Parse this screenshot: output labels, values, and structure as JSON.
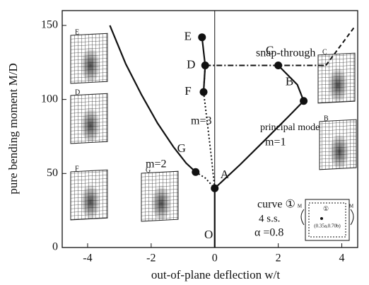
{
  "chart_data": {
    "type": "line",
    "xlabel": "out-of-plane deflection  w/t",
    "ylabel": "pure bending moment M/D",
    "xlim": [
      -4.8,
      4.5
    ],
    "ylim": [
      0,
      160
    ],
    "xticks": [
      -4,
      -2,
      0,
      2,
      4
    ],
    "yticks": [
      0,
      50,
      100,
      150
    ],
    "series": [
      {
        "style": "solid",
        "x": [
          -3.3,
          -2.8,
          -2.3,
          -1.8,
          -1.3,
          -0.9,
          -0.6
        ],
        "values": [
          150,
          124,
          103,
          84,
          68,
          57,
          51
        ]
      },
      {
        "style": "dotted",
        "x": [
          -0.6,
          -0.3,
          0
        ],
        "values": [
          51,
          47,
          40
        ]
      },
      {
        "style": "solid",
        "x": [
          0,
          0.8,
          1.6,
          2.3,
          2.8,
          2.6,
          2.0
        ],
        "values": [
          40,
          56,
          73,
          88,
          99,
          110,
          123
        ]
      },
      {
        "style": "dotted",
        "x": [
          0,
          -0.1,
          -0.22,
          -0.35,
          -0.3
        ],
        "values": [
          40,
          60,
          82,
          105,
          123
        ]
      },
      {
        "style": "solid",
        "x": [
          -0.4,
          -0.3,
          -0.35
        ],
        "values": [
          142,
          123,
          105
        ]
      },
      {
        "style": "dashdot",
        "x": [
          -0.3,
          2.0,
          3.5
        ],
        "values": [
          123,
          123,
          123
        ]
      },
      {
        "style": "dashed",
        "x": [
          3.5,
          4.4
        ],
        "values": [
          123,
          149
        ]
      },
      {
        "style": "solid",
        "x": [
          0,
          0
        ],
        "values": [
          0,
          40
        ]
      }
    ],
    "points": [
      {
        "label": "E",
        "x": -0.4,
        "y": 142
      },
      {
        "label": "D",
        "x": -0.3,
        "y": 123
      },
      {
        "label": "F",
        "x": -0.35,
        "y": 105
      },
      {
        "label": "G",
        "x": -0.6,
        "y": 51
      },
      {
        "label": "A",
        "x": 0,
        "y": 40
      },
      {
        "label": "C",
        "x": 2.0,
        "y": 123
      },
      {
        "label": "B",
        "x": 2.8,
        "y": 99
      }
    ],
    "annotations": [
      "snap-through",
      "principal mode",
      "m=1",
      "m=2",
      "m=3",
      "curve ①",
      "4 s.s.",
      "α =0.8",
      "O"
    ],
    "panels": [
      "E",
      "D",
      "F",
      "G",
      "C",
      "B"
    ],
    "inset": [
      "M",
      "M",
      "①",
      "(0.35a,0.70b)"
    ]
  }
}
